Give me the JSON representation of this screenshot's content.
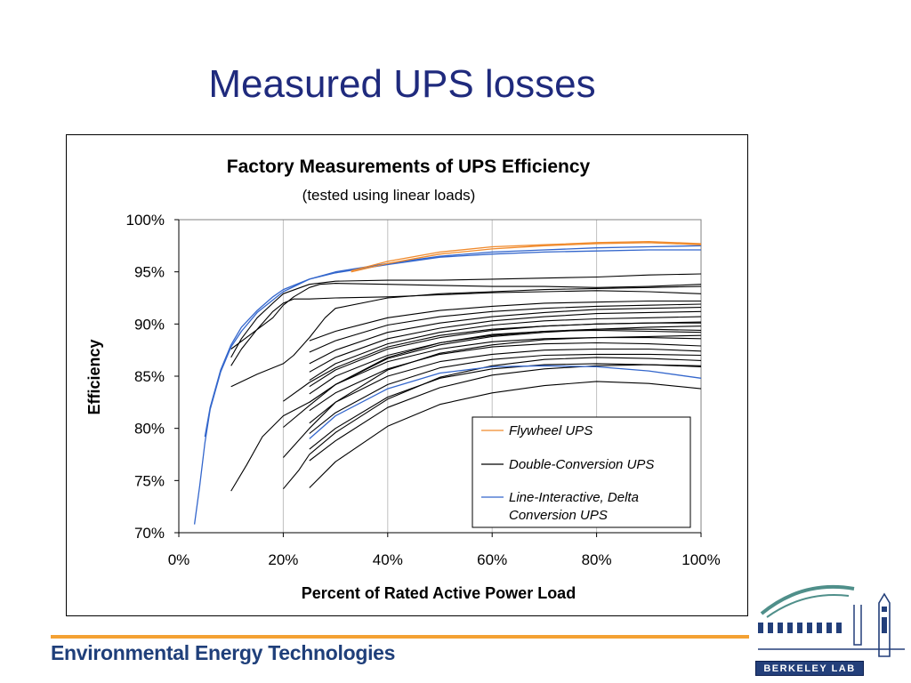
{
  "slide": {
    "title": "Measured UPS losses",
    "footer": "Environmental Energy Technologies",
    "logo_text": "Berkeley Lab"
  },
  "colors": {
    "title": "#1f2a7d",
    "flywheel": "#f08a2c",
    "double_conversion": "#000000",
    "line_interactive": "#3366cc",
    "footer_bar": "#f4a133"
  },
  "chart_data": {
    "type": "line",
    "title": "Factory Measurements of UPS Efficiency",
    "subtitle": "(tested using linear loads)",
    "xlabel": "Percent of Rated Active Power Load",
    "ylabel": "Efficiency",
    "xlim": [
      0,
      100
    ],
    "ylim": [
      70,
      100
    ],
    "x_ticks": [
      "0%",
      "20%",
      "40%",
      "60%",
      "80%",
      "100%"
    ],
    "y_ticks": [
      "70%",
      "75%",
      "80%",
      "85%",
      "90%",
      "95%",
      "100%"
    ],
    "grid": true,
    "legend_position": "bottom-right",
    "legend": [
      "Flywheel UPS",
      "Double-Conversion UPS",
      "Line-Interactive, Delta Conversion UPS"
    ],
    "series": [
      {
        "group": "flywheel",
        "x": [
          33,
          40,
          50,
          60,
          70,
          80,
          90,
          100
        ],
        "y": [
          95.1,
          96.0,
          96.9,
          97.4,
          97.6,
          97.8,
          97.9,
          97.7
        ]
      },
      {
        "group": "flywheel",
        "x": [
          33,
          40,
          50,
          60,
          70,
          80,
          90,
          100
        ],
        "y": [
          95.0,
          95.8,
          96.7,
          97.2,
          97.5,
          97.7,
          97.8,
          97.6
        ]
      },
      {
        "group": "line_interactive",
        "x": [
          3,
          4,
          5,
          6,
          8,
          10,
          12,
          15,
          20,
          25,
          30,
          40,
          50,
          60,
          70,
          80,
          90,
          100
        ],
        "y": [
          70.8,
          74.5,
          78.6,
          81.8,
          85.4,
          87.8,
          89.3,
          91.1,
          93.1,
          94.3,
          94.9,
          95.7,
          96.4,
          96.7,
          96.9,
          97.0,
          97.1,
          97.1
        ]
      },
      {
        "group": "line_interactive",
        "x": [
          5,
          6,
          8,
          10,
          12,
          15,
          18,
          20,
          25,
          30,
          40,
          50,
          60,
          70,
          80,
          90,
          100
        ],
        "y": [
          79.2,
          82.0,
          85.6,
          88.0,
          89.7,
          91.3,
          92.6,
          93.3,
          94.3,
          95.0,
          95.8,
          96.5,
          96.9,
          97.1,
          97.3,
          97.4,
          97.5
        ]
      },
      {
        "group": "line_interactive",
        "x": [
          25,
          30,
          40,
          50,
          60,
          70,
          80,
          90,
          100
        ],
        "y": [
          79.0,
          81.2,
          83.8,
          85.3,
          85.9,
          86.0,
          85.9,
          85.5,
          84.8
        ]
      },
      {
        "group": "double_conversion",
        "x": [
          10,
          12,
          15,
          18,
          20,
          25,
          30,
          40,
          50,
          60,
          70,
          80,
          90,
          100
        ],
        "y": [
          86.8,
          88.6,
          90.6,
          92.0,
          92.9,
          93.8,
          94.1,
          94.2,
          94.2,
          94.3,
          94.4,
          94.5,
          94.7,
          94.8
        ]
      },
      {
        "group": "double_conversion",
        "x": [
          10,
          12,
          15,
          18,
          20,
          22,
          25,
          30,
          40,
          50,
          60,
          70,
          80,
          90,
          100
        ],
        "y": [
          86.0,
          87.6,
          89.5,
          91.2,
          92.0,
          92.4,
          92.4,
          92.5,
          92.6,
          92.8,
          93.0,
          93.1,
          93.2,
          93.1,
          92.9
        ]
      },
      {
        "group": "double_conversion",
        "x": [
          10,
          14,
          18,
          20,
          22,
          25,
          27,
          30,
          40,
          50,
          60,
          70,
          80,
          90,
          100
        ],
        "y": [
          87.6,
          89.1,
          90.6,
          91.8,
          92.6,
          93.5,
          93.8,
          93.9,
          93.8,
          93.7,
          93.6,
          93.6,
          93.5,
          93.6,
          93.8
        ]
      },
      {
        "group": "double_conversion",
        "x": [
          10,
          15,
          20,
          22,
          25,
          28,
          30,
          40,
          50,
          60,
          70,
          80,
          90,
          100
        ],
        "y": [
          84.0,
          85.2,
          86.2,
          87.0,
          88.7,
          90.6,
          91.5,
          92.5,
          92.9,
          93.1,
          93.3,
          93.4,
          93.5,
          93.6
        ]
      },
      {
        "group": "double_conversion",
        "x": [
          10,
          13,
          16,
          20,
          25,
          30,
          40,
          50,
          60,
          70,
          80,
          90,
          100
        ],
        "y": [
          74.0,
          76.5,
          79.2,
          81.2,
          82.5,
          84.2,
          86.8,
          88.2,
          89.0,
          89.3,
          89.4,
          89.3,
          89.2
        ]
      },
      {
        "group": "double_conversion",
        "x": [
          20,
          23,
          25,
          30,
          40,
          50,
          60,
          70,
          80,
          90,
          100
        ],
        "y": [
          74.2,
          76.0,
          77.5,
          79.6,
          82.8,
          84.9,
          86.0,
          86.6,
          86.8,
          86.7,
          86.5
        ]
      },
      {
        "group": "double_conversion",
        "x": [
          20,
          25,
          30,
          40,
          50,
          60,
          70,
          80,
          90,
          100
        ],
        "y": [
          77.2,
          80.0,
          82.5,
          85.6,
          87.2,
          88.0,
          88.5,
          88.7,
          88.8,
          88.9
        ]
      },
      {
        "group": "double_conversion",
        "x": [
          20,
          25,
          30,
          40,
          50,
          60,
          70,
          80,
          90,
          100
        ],
        "y": [
          80.1,
          82.2,
          84.2,
          86.7,
          88.0,
          88.8,
          89.2,
          89.5,
          89.7,
          89.8
        ]
      },
      {
        "group": "double_conversion",
        "x": [
          20,
          25,
          30,
          40,
          50,
          60,
          70,
          80,
          90,
          100
        ],
        "y": [
          82.6,
          84.4,
          85.8,
          87.8,
          88.9,
          89.5,
          89.8,
          90.0,
          90.1,
          90.2
        ]
      },
      {
        "group": "double_conversion",
        "x": [
          25,
          30,
          40,
          50,
          60,
          70,
          80,
          90,
          100
        ],
        "y": [
          74.3,
          76.8,
          80.2,
          82.3,
          83.4,
          84.1,
          84.5,
          84.3,
          83.8
        ]
      },
      {
        "group": "double_conversion",
        "x": [
          25,
          30,
          40,
          50,
          60,
          70,
          80,
          90,
          100
        ],
        "y": [
          76.9,
          78.8,
          82.0,
          83.9,
          85.1,
          85.7,
          86.0,
          86.1,
          86.0
        ]
      },
      {
        "group": "double_conversion",
        "x": [
          25,
          30,
          40,
          50,
          60,
          70,
          80,
          90,
          100
        ],
        "y": [
          78.0,
          80.0,
          83.0,
          84.8,
          85.7,
          86.1,
          86.2,
          86.1,
          85.9
        ]
      },
      {
        "group": "double_conversion",
        "x": [
          25,
          30,
          40,
          50,
          60,
          70,
          80,
          90,
          100
        ],
        "y": [
          79.5,
          81.5,
          84.2,
          85.8,
          86.6,
          87.0,
          87.1,
          87.1,
          87.0
        ]
      },
      {
        "group": "double_conversion",
        "x": [
          25,
          30,
          40,
          50,
          60,
          70,
          80,
          90,
          100
        ],
        "y": [
          80.5,
          82.5,
          85.0,
          86.4,
          87.1,
          87.5,
          87.6,
          87.6,
          87.4
        ]
      },
      {
        "group": "double_conversion",
        "x": [
          25,
          30,
          40,
          50,
          60,
          70,
          80,
          90,
          100
        ],
        "y": [
          81.7,
          83.4,
          85.7,
          87.1,
          87.8,
          88.1,
          88.2,
          88.1,
          87.9
        ]
      },
      {
        "group": "double_conversion",
        "x": [
          25,
          30,
          40,
          50,
          60,
          70,
          80,
          90,
          100
        ],
        "y": [
          82.5,
          84.2,
          86.4,
          87.6,
          88.3,
          88.6,
          88.7,
          88.7,
          88.6
        ]
      },
      {
        "group": "double_conversion",
        "x": [
          25,
          30,
          40,
          50,
          60,
          70,
          80,
          90,
          100
        ],
        "y": [
          83.3,
          85.0,
          87.0,
          88.2,
          88.9,
          89.3,
          89.5,
          89.5,
          89.4
        ]
      },
      {
        "group": "double_conversion",
        "x": [
          25,
          30,
          40,
          50,
          60,
          70,
          80,
          90,
          100
        ],
        "y": [
          84.0,
          85.6,
          87.6,
          88.7,
          89.4,
          89.8,
          90.0,
          90.1,
          90.1
        ]
      },
      {
        "group": "double_conversion",
        "x": [
          25,
          30,
          40,
          50,
          60,
          70,
          80,
          90,
          100
        ],
        "y": [
          84.6,
          86.2,
          88.1,
          89.2,
          89.9,
          90.3,
          90.5,
          90.6,
          90.7
        ]
      },
      {
        "group": "double_conversion",
        "x": [
          25,
          30,
          40,
          50,
          60,
          70,
          80,
          90,
          100
        ],
        "y": [
          85.4,
          86.8,
          88.6,
          89.6,
          90.3,
          90.7,
          91.0,
          91.1,
          91.2
        ]
      },
      {
        "group": "double_conversion",
        "x": [
          25,
          30,
          40,
          50,
          60,
          70,
          80,
          90,
          100
        ],
        "y": [
          86.2,
          87.5,
          89.2,
          90.1,
          90.7,
          91.1,
          91.4,
          91.5,
          91.6
        ]
      },
      {
        "group": "double_conversion",
        "x": [
          25,
          30,
          40,
          50,
          60,
          70,
          80,
          90,
          100
        ],
        "y": [
          87.3,
          88.4,
          89.9,
          90.7,
          91.2,
          91.5,
          91.7,
          91.8,
          91.9
        ]
      },
      {
        "group": "double_conversion",
        "x": [
          25,
          30,
          40,
          50,
          60,
          70,
          80,
          90,
          100
        ],
        "y": [
          88.4,
          89.3,
          90.6,
          91.3,
          91.7,
          92.0,
          92.1,
          92.2,
          92.2
        ]
      }
    ]
  }
}
